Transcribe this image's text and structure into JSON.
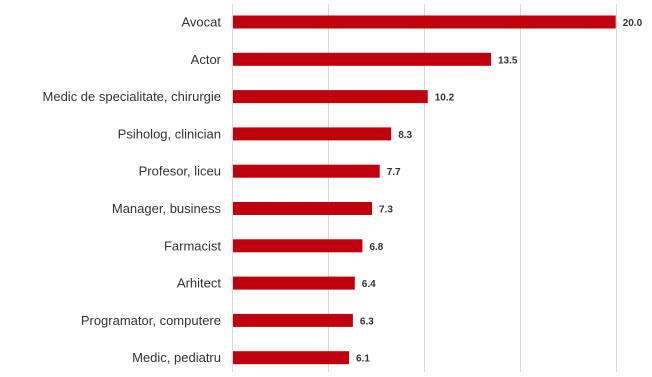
{
  "chart_data": {
    "type": "bar",
    "orientation": "horizontal",
    "title": "",
    "xlabel": "",
    "ylabel": "",
    "categories": [
      "Avocat",
      "Actor",
      "Medic de specialitate, chirurgie",
      "Psiholog, clinician",
      "Profesor, liceu",
      "Manager, business",
      "Farmacist",
      "Arhitect",
      "Programator, computere",
      "Medic, pediatru"
    ],
    "values": [
      20.0,
      13.5,
      10.2,
      8.3,
      7.7,
      7.3,
      6.8,
      6.4,
      6.3,
      6.1
    ],
    "value_labels": [
      "20.0",
      "13.5",
      "10.2",
      "8.3",
      "7.7",
      "7.3",
      "6.8",
      "6.4",
      "6.3",
      "6.1"
    ],
    "xlim": [
      0,
      20.8
    ],
    "grid": true,
    "gridlines_at": [
      5,
      10,
      15,
      20
    ],
    "legend": "none",
    "bar_color": "#c0000c",
    "grid_color": "#d9d9d9",
    "text_color": "#333333"
  }
}
